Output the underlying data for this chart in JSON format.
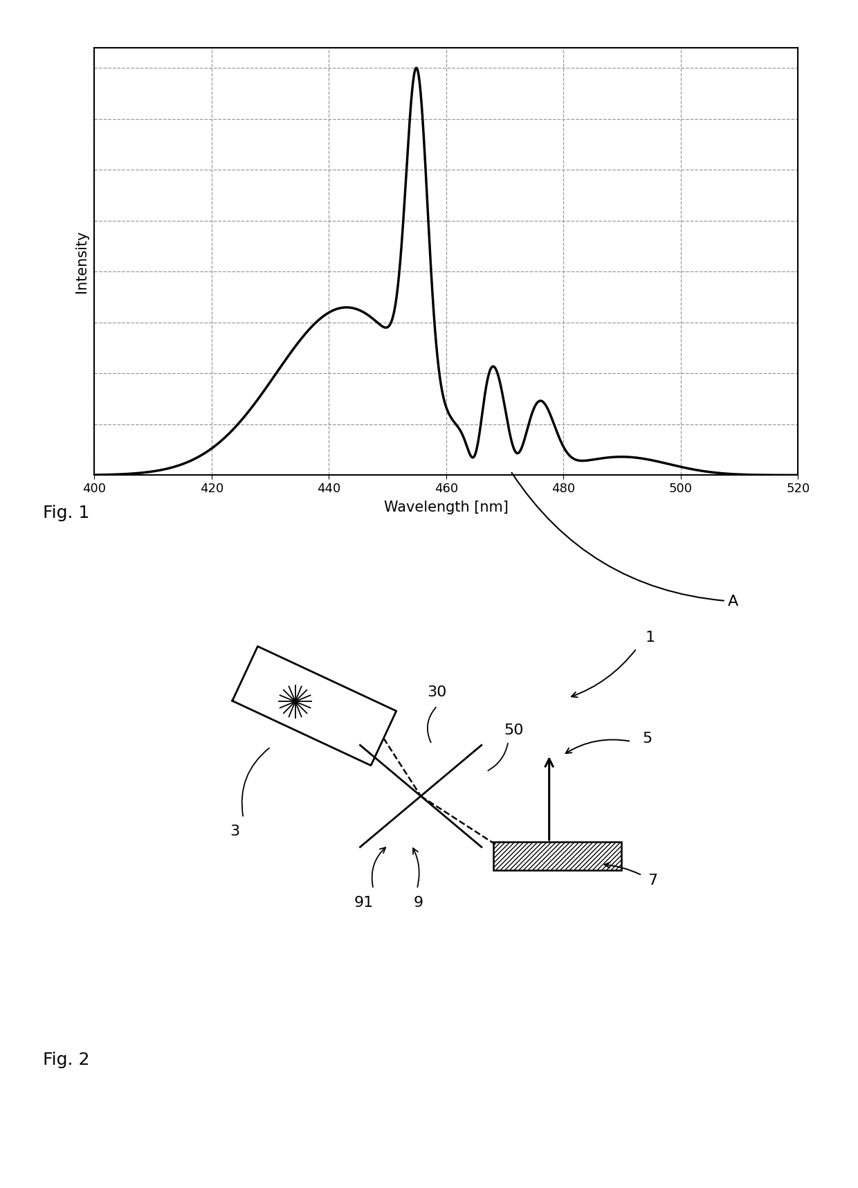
{
  "fig1": {
    "xlabel": "Wavelength [nm]",
    "ylabel": "Intensity",
    "xlim": [
      400,
      520
    ],
    "ylim_min": 0,
    "xticks": [
      400,
      420,
      440,
      460,
      480,
      500,
      520
    ],
    "label_A": "A",
    "n_hgrid": 9,
    "n_vgrid": 7
  },
  "fig2": {
    "label_1": "1",
    "label_3": "3",
    "label_5": "5",
    "label_7": "7",
    "label_9": "9",
    "label_91": "91",
    "label_30": "30",
    "label_50": "50"
  },
  "fig1_label": "Fig. 1",
  "fig2_label": "Fig. 2",
  "background_color": "#ffffff",
  "line_color": "#000000",
  "grid_dash_color": "#999999"
}
